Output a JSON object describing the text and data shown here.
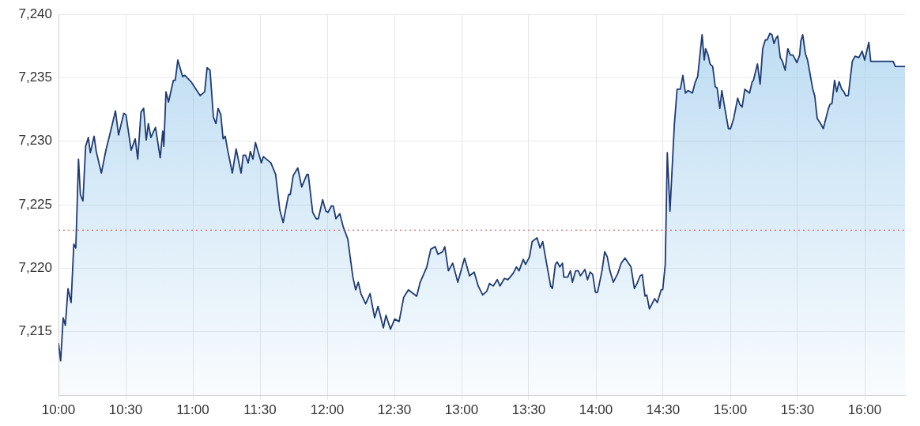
{
  "chart_data": {
    "type": "area",
    "x": [
      10.0,
      10.016,
      10.035,
      10.051,
      10.071,
      10.094,
      10.114,
      10.129,
      10.149,
      10.163,
      10.182,
      10.202,
      10.222,
      10.237,
      10.265,
      10.281,
      10.319,
      10.353,
      10.388,
      10.424,
      10.447,
      10.486,
      10.502,
      10.541,
      10.571,
      10.59,
      10.614,
      10.634,
      10.653,
      10.669,
      10.688,
      10.722,
      10.757,
      10.776,
      10.784,
      10.8,
      10.819,
      10.855,
      10.869,
      10.888,
      10.924,
      10.941,
      10.986,
      11.055,
      11.088,
      11.106,
      11.128,
      11.153,
      11.172,
      11.188,
      11.208,
      11.225,
      11.241,
      11.261,
      11.294,
      11.322,
      11.359,
      11.375,
      11.392,
      11.412,
      11.428,
      11.447,
      11.466,
      11.51,
      11.525,
      11.581,
      11.616,
      11.647,
      11.672,
      11.712,
      11.725,
      11.747,
      11.781,
      11.81,
      11.849,
      11.859,
      11.892,
      11.918,
      11.934,
      11.966,
      11.99,
      12.006,
      12.031,
      12.045,
      12.065,
      12.094,
      12.118,
      12.153,
      12.191,
      12.212,
      12.231,
      12.251,
      12.286,
      12.319,
      12.353,
      12.378,
      12.418,
      12.437,
      12.471,
      12.502,
      12.535,
      12.569,
      12.604,
      12.666,
      12.692,
      12.741,
      12.771,
      12.804,
      12.824,
      12.859,
      12.875,
      12.902,
      12.934,
      12.972,
      13.022,
      13.059,
      13.094,
      13.124,
      13.157,
      13.188,
      13.208,
      13.235,
      13.266,
      13.286,
      13.319,
      13.345,
      13.384,
      13.408,
      13.428,
      13.459,
      13.476,
      13.506,
      13.525,
      13.561,
      13.584,
      13.604,
      13.634,
      13.663,
      13.676,
      13.698,
      13.712,
      13.731,
      13.751,
      13.761,
      13.79,
      13.81,
      13.825,
      13.849,
      13.869,
      13.884,
      13.918,
      13.937,
      13.957,
      13.976,
      13.996,
      14.012,
      14.045,
      14.065,
      14.084,
      14.104,
      14.129,
      14.163,
      14.188,
      14.216,
      14.261,
      14.286,
      14.306,
      14.329,
      14.345,
      14.365,
      14.378,
      14.398,
      14.437,
      14.457,
      14.485,
      14.497,
      14.516,
      14.531,
      14.551,
      14.584,
      14.604,
      14.628,
      14.647,
      14.666,
      14.686,
      14.718,
      14.737,
      14.757,
      14.79,
      14.806,
      14.816,
      14.835,
      14.849,
      14.869,
      14.888,
      14.902,
      14.922,
      14.937,
      14.961,
      14.986,
      15.002,
      15.025,
      15.055,
      15.071,
      15.088,
      15.108,
      15.143,
      15.163,
      15.172,
      15.202,
      15.222,
      15.241,
      15.261,
      15.275,
      15.294,
      15.31,
      15.325,
      15.339,
      15.353,
      15.372,
      15.388,
      15.408,
      15.428,
      15.447,
      15.466,
      15.496,
      15.516,
      15.525,
      15.539,
      15.559,
      15.575,
      15.614,
      15.628,
      15.647,
      15.672,
      15.692,
      15.728,
      15.741,
      15.757,
      15.776,
      15.792,
      15.81,
      15.829,
      15.845,
      15.859,
      15.878,
      15.908,
      15.928,
      15.957,
      15.981,
      16.0,
      16.031,
      16.045,
      16.212,
      16.228,
      16.3
    ],
    "series": [
      {
        "color": "#1f3b73",
        "values": [
          7214.1,
          7212.7,
          7216.1,
          7215.5,
          7218.4,
          7217.3,
          7221.9,
          7221.6,
          7228.6,
          7225.8,
          7225.3,
          7229.6,
          7230.3,
          7229.1,
          7230.4,
          7229.2,
          7227.5,
          7229.3,
          7230.8,
          7232.4,
          7230.5,
          7232.2,
          7232.1,
          7229.3,
          7230.2,
          7228.6,
          7232.3,
          7232.6,
          7230.1,
          7231.4,
          7230.3,
          7231.1,
          7228.7,
          7230.8,
          7229.6,
          7233.9,
          7233.1,
          7234.8,
          7234.8,
          7236.4,
          7235.1,
          7235.2,
          7234.7,
          7233.6,
          7233.9,
          7235.8,
          7235.6,
          7231.9,
          7231.4,
          7232.6,
          7232.1,
          7230.2,
          7230.4,
          7229.2,
          7227.5,
          7229.4,
          7227.5,
          7228.9,
          7228.9,
          7228.3,
          7229.2,
          7228.6,
          7229.9,
          7228.3,
          7228.8,
          7228.3,
          7227.4,
          7224.6,
          7223.6,
          7225.8,
          7225.8,
          7227.3,
          7227.9,
          7226.4,
          7227.4,
          7227.4,
          7224.4,
          7223.9,
          7223.9,
          7225.4,
          7224.5,
          7224.4,
          7224.9,
          7224.9,
          7223.9,
          7224.3,
          7223.3,
          7222.3,
          7219.3,
          7218.3,
          7218.9,
          7218.0,
          7217.2,
          7218.0,
          7216.1,
          7217.0,
          7215.3,
          7216.3,
          7215.2,
          7216.0,
          7215.8,
          7217.7,
          7218.3,
          7217.8,
          7218.9,
          7220.1,
          7221.5,
          7221.7,
          7221.1,
          7221.3,
          7221.7,
          7219.8,
          7220.4,
          7218.9,
          7220.8,
          7219.4,
          7219.7,
          7218.6,
          7217.9,
          7218.2,
          7218.8,
          7218.6,
          7219.1,
          7218.6,
          7219.2,
          7219.1,
          7219.6,
          7220.1,
          7219.8,
          7220.7,
          7220.3,
          7220.9,
          7222.1,
          7222.4,
          7221.6,
          7222.1,
          7220.3,
          7218.6,
          7218.4,
          7220.3,
          7220.5,
          7220.1,
          7220.4,
          7219.3,
          7219.3,
          7219.8,
          7218.9,
          7219.8,
          7219.8,
          7219.4,
          7219.9,
          7219.1,
          7219.7,
          7219.5,
          7218.1,
          7218.1,
          7219.8,
          7221.3,
          7220.9,
          7219.8,
          7218.9,
          7219.6,
          7220.4,
          7220.8,
          7220.1,
          7218.4,
          7218.8,
          7219.4,
          7219.5,
          7217.8,
          7217.9,
          7216.8,
          7217.6,
          7217.3,
          7218.3,
          7218.3,
          7220.3,
          7229.1,
          7224.5,
          7231.4,
          7234.1,
          7234.1,
          7235.2,
          7233.8,
          7234.0,
          7233.8,
          7234.6,
          7235.1,
          7238.4,
          7236.4,
          7237.3,
          7236.8,
          7236.1,
          7235.9,
          7234.3,
          7234.2,
          7232.6,
          7234.0,
          7232.5,
          7231.0,
          7231.0,
          7231.8,
          7233.4,
          7232.9,
          7232.7,
          7234.1,
          7233.8,
          7234.7,
          7234.8,
          7236.1,
          7234.5,
          7237.3,
          7238.0,
          7238.0,
          7238.5,
          7238.4,
          7237.7,
          7238.1,
          7238.3,
          7236.6,
          7236.3,
          7235.6,
          7237.3,
          7236.8,
          7236.8,
          7236.2,
          7236.8,
          7237.9,
          7238.4,
          7236.9,
          7236.4,
          7234.1,
          7233.6,
          7231.8,
          7231.4,
          7231.0,
          7232.5,
          7232.9,
          7233.0,
          7234.8,
          7233.9,
          7234.7,
          7234.1,
          7233.9,
          7233.6,
          7233.6,
          7236.3,
          7236.7,
          7236.6,
          7237.1,
          7236.4,
          7237.8,
          7236.3,
          7236.3,
          7235.9,
          7235.9
        ]
      }
    ],
    "xlim": [
      10,
      16.3
    ],
    "xticks": [
      {
        "value": 10,
        "label": "10:00"
      },
      {
        "value": 10.5,
        "label": "10:30"
      },
      {
        "value": 11,
        "label": "11:00"
      },
      {
        "value": 11.5,
        "label": "11:30"
      },
      {
        "value": 12,
        "label": "12:00"
      },
      {
        "value": 12.5,
        "label": "12:30"
      },
      {
        "value": 13,
        "label": "13:00"
      },
      {
        "value": 13.5,
        "label": "13:30"
      },
      {
        "value": 14,
        "label": "14:00"
      },
      {
        "value": 14.5,
        "label": "14:30"
      },
      {
        "value": 15,
        "label": "15:00"
      },
      {
        "value": 15.5,
        "label": "15:30"
      },
      {
        "value": 16,
        "label": "16:00"
      }
    ],
    "ylim": [
      7210,
      7240
    ],
    "yticks": [
      {
        "value": 7215,
        "label": "7,215"
      },
      {
        "value": 7220,
        "label": "7,220"
      },
      {
        "value": 7225,
        "label": "7,225"
      },
      {
        "value": 7230,
        "label": "7,230"
      },
      {
        "value": 7235,
        "label": "7,235"
      },
      {
        "value": 7240,
        "label": "7,240"
      }
    ],
    "ref_lines": [
      {
        "axis": "y",
        "value": 7223,
        "color": "#d9534f",
        "line_style": "dotted"
      }
    ],
    "grid": true,
    "legend": false,
    "marker": "none",
    "line_style": "solid"
  }
}
